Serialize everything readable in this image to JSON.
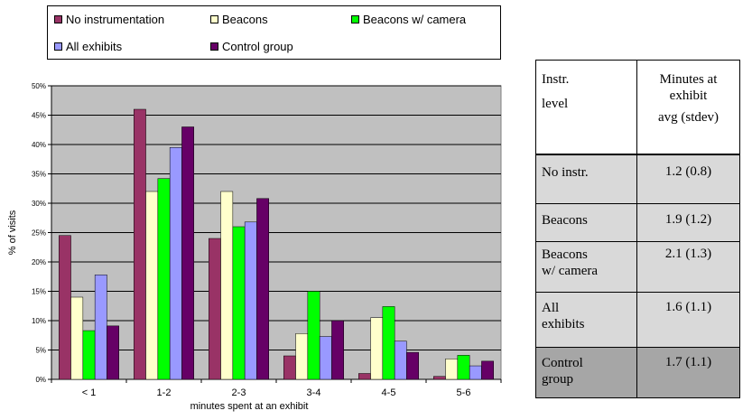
{
  "legend": {
    "items": [
      {
        "label": "No instrumentation",
        "color": "#993366"
      },
      {
        "label": "Beacons",
        "color": "#ffffcc"
      },
      {
        "label": "Beacons w/ camera",
        "color": "#00ff00"
      },
      {
        "label": "All exhibits",
        "color": "#9999ff"
      },
      {
        "label": "Control group",
        "color": "#660066"
      }
    ]
  },
  "chart_data": {
    "type": "bar",
    "categories": [
      "< 1",
      "1-2",
      "2-3",
      "3-4",
      "4-5",
      "5-6"
    ],
    "series": [
      {
        "name": "No instrumentation",
        "color": "#993366",
        "values": [
          24.5,
          46.0,
          24.0,
          4.0,
          1.0,
          0.5
        ]
      },
      {
        "name": "Beacons",
        "color": "#ffffcc",
        "values": [
          14.0,
          32.0,
          32.0,
          7.8,
          10.5,
          3.5
        ]
      },
      {
        "name": "Beacons w/ camera",
        "color": "#00ff00",
        "values": [
          8.3,
          34.2,
          26.0,
          15.0,
          12.4,
          4.1
        ]
      },
      {
        "name": "All exhibits",
        "color": "#9999ff",
        "values": [
          17.8,
          39.5,
          26.8,
          7.3,
          6.5,
          2.3
        ]
      },
      {
        "name": "Control group",
        "color": "#660066",
        "values": [
          9.1,
          43.0,
          30.8,
          10.0,
          4.6,
          3.1
        ]
      }
    ],
    "ylim": [
      0,
      50
    ],
    "yticks": [
      "0%",
      "5%",
      "10%",
      "15%",
      "20%",
      "25%",
      "30%",
      "35%",
      "40%",
      "45%",
      "50%"
    ],
    "xlabel": "minutes spent at an exhibit",
    "ylabel": "% of visits",
    "grid": true,
    "plot_background": "#c0c0c0"
  },
  "table": {
    "header": {
      "col1": [
        "Instr.",
        "level"
      ],
      "col2": [
        "Minutes at",
        "exhibit",
        "avg (stdev)"
      ]
    },
    "rows": [
      {
        "level": [
          "No instr."
        ],
        "value": "1.2 (0.8)"
      },
      {
        "level": [
          "Beacons"
        ],
        "value": "1.9 (1.2)"
      },
      {
        "level": [
          "Beacons",
          "w/ camera"
        ],
        "value": "2.1 (1.3)"
      },
      {
        "level": [
          "All",
          "exhibits"
        ],
        "value": "1.6 (1.1)"
      },
      {
        "level": [
          "Control",
          "group"
        ],
        "value": "1.7 (1.1)"
      }
    ]
  }
}
